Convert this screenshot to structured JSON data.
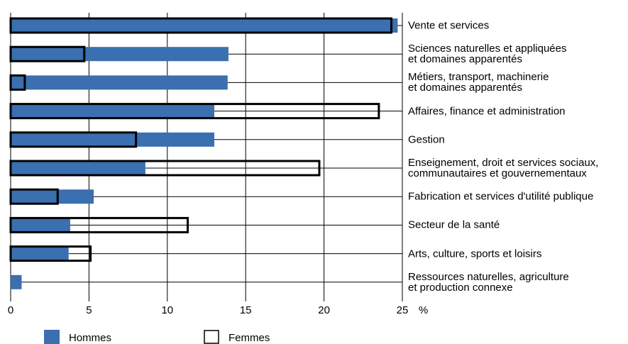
{
  "chart_data": {
    "type": "overlap-barh",
    "categories": [
      "Vente et services",
      "Sciences naturelles et appliquées\net domaines apparentés",
      "Métiers, transport, machinerie\net domaines apparentés",
      "Affaires, finance et administration",
      "Gestion",
      "Enseignement, droit et services sociaux,\ncommunautaires et gouvernementaux",
      "Fabrication et services d'utilité publique",
      "Secteur de la santé",
      "Arts, culture, sports et loisirs",
      "Ressources naturelles, agriculture\net production connexe"
    ],
    "series": [
      {
        "name": "Hommes",
        "color": "#3a6fb0",
        "values": [
          24.7,
          13.9,
          13.85,
          13.0,
          13.0,
          8.6,
          5.3,
          3.8,
          3.7,
          0.7
        ]
      },
      {
        "name": "Femmes",
        "color": "#000000",
        "values": [
          24.3,
          4.7,
          0.9,
          23.5,
          8.0,
          19.7,
          3.0,
          11.3,
          5.1,
          0
        ]
      }
    ],
    "xlabel": "%",
    "xlim": [
      0,
      25
    ],
    "xticks": [
      0,
      5,
      10,
      15,
      20,
      25
    ],
    "grid": true
  }
}
